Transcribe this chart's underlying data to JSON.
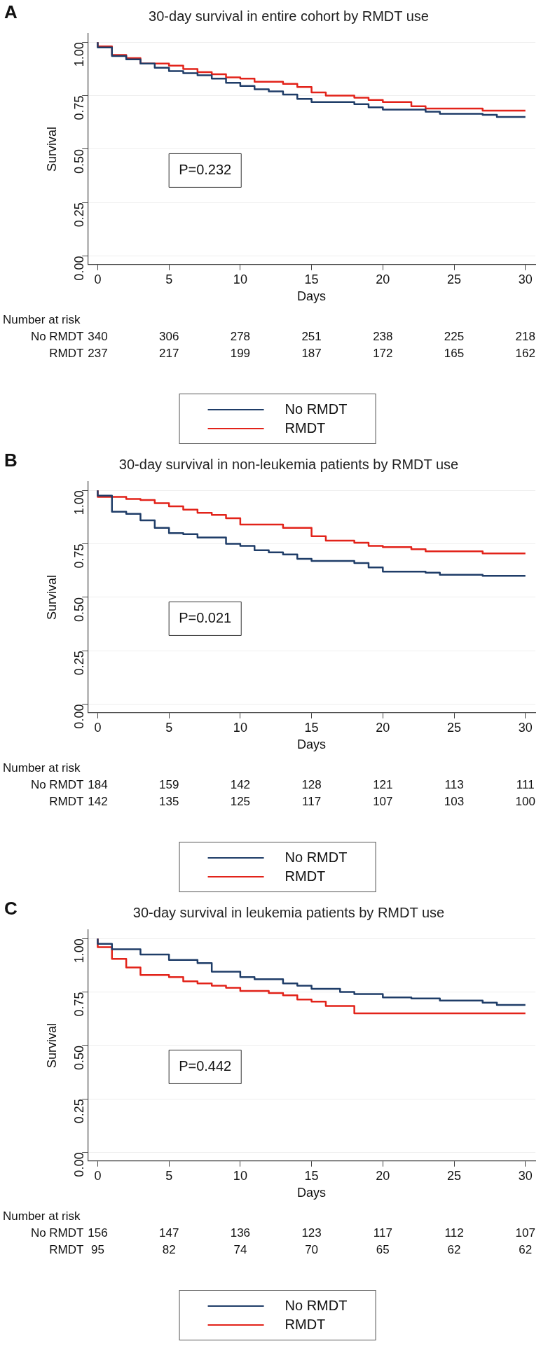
{
  "chart_data": [
    {
      "type": "step",
      "title": "30-day survival in entire cohort by RMDT use",
      "xlabel": "Days",
      "ylabel": "Survival",
      "xlim": [
        -0.7,
        30.7
      ],
      "xticks": [
        0,
        5,
        10,
        15,
        20,
        25,
        30
      ],
      "ylim": [
        -0.04,
        1.04
      ],
      "yticks": [
        {
          "value": 0,
          "label": "0.00"
        },
        {
          "value": 0.25,
          "label": "0.25"
        },
        {
          "value": 0.5,
          "label": "0.50"
        },
        {
          "value": 0.75,
          "label": "0.75"
        },
        {
          "value": 1,
          "label": "1.00"
        }
      ],
      "grid": "y",
      "legend": "bottom",
      "annotations": [
        "A",
        "P=0.232",
        "Number at risk",
        "No RMDT",
        "340",
        "306",
        "278",
        "251",
        "238",
        "225",
        "218",
        "RMDT",
        "237",
        "217",
        "199",
        "187",
        "172",
        "165",
        "162"
      ],
      "series": [
        {
          "name": "No RMDT",
          "color": "#1f3d68",
          "x": [
            0,
            1,
            2,
            3,
            4,
            5,
            6,
            7,
            8,
            9,
            10,
            11,
            12,
            13,
            14,
            15,
            18,
            19,
            20,
            23,
            24,
            27,
            28,
            30
          ],
          "values": [
            1.0,
            0.975,
            0.935,
            0.92,
            0.9,
            0.88,
            0.865,
            0.855,
            0.845,
            0.83,
            0.81,
            0.795,
            0.78,
            0.77,
            0.755,
            0.735,
            0.72,
            0.71,
            0.695,
            0.685,
            0.675,
            0.665,
            0.66,
            0.65
          ]
        },
        {
          "name": "RMDT",
          "color": "#e2231a",
          "x": [
            0,
            1,
            2,
            3,
            5,
            6,
            7,
            8,
            9,
            10,
            11,
            13,
            14,
            15,
            16,
            18,
            19,
            20,
            22,
            23,
            27,
            28,
            30
          ],
          "values": [
            1.0,
            0.98,
            0.94,
            0.925,
            0.9,
            0.89,
            0.875,
            0.86,
            0.85,
            0.835,
            0.83,
            0.815,
            0.805,
            0.79,
            0.765,
            0.75,
            0.74,
            0.73,
            0.72,
            0.7,
            0.69,
            0.68,
            0.68
          ]
        }
      ]
    },
    {
      "type": "step",
      "title": "30-day survival in non-leukemia patients by RMDT use",
      "xlabel": "Days",
      "ylabel": "Survival",
      "xlim": [
        -0.7,
        30.7
      ],
      "xticks": [
        0,
        5,
        10,
        15,
        20,
        25,
        30
      ],
      "ylim": [
        -0.04,
        1.04
      ],
      "yticks": [
        {
          "value": 0,
          "label": "0.00"
        },
        {
          "value": 0.25,
          "label": "0.25"
        },
        {
          "value": 0.5,
          "label": "0.50"
        },
        {
          "value": 0.75,
          "label": "0.75"
        },
        {
          "value": 1,
          "label": "1.00"
        }
      ],
      "grid": "y",
      "legend": "bottom",
      "annotations": [
        "B",
        "P=0.021",
        "Number at risk",
        "No RMDT",
        "184",
        "159",
        "142",
        "128",
        "121",
        "113",
        "111",
        "RMDT",
        "142",
        "135",
        "125",
        "117",
        "107",
        "103",
        "100"
      ],
      "series": [
        {
          "name": "No RMDT",
          "color": "#1f3d68",
          "x": [
            0,
            1,
            2,
            3,
            4,
            5,
            6,
            7,
            9,
            10,
            11,
            12,
            13,
            14,
            15,
            18,
            19,
            20,
            23,
            24,
            27,
            30
          ],
          "values": [
            1.0,
            0.975,
            0.9,
            0.89,
            0.86,
            0.825,
            0.8,
            0.795,
            0.78,
            0.75,
            0.74,
            0.72,
            0.71,
            0.7,
            0.68,
            0.67,
            0.66,
            0.64,
            0.62,
            0.615,
            0.605,
            0.6
          ]
        },
        {
          "name": "RMDT",
          "color": "#e2231a",
          "x": [
            0,
            2,
            3,
            4,
            5,
            6,
            7,
            8,
            9,
            10,
            13,
            15,
            16,
            18,
            19,
            20,
            22,
            23,
            27,
            28,
            30
          ],
          "values": [
            1.0,
            0.97,
            0.96,
            0.955,
            0.94,
            0.925,
            0.91,
            0.895,
            0.885,
            0.87,
            0.84,
            0.825,
            0.785,
            0.765,
            0.755,
            0.74,
            0.735,
            0.725,
            0.715,
            0.705,
            0.705
          ]
        }
      ]
    },
    {
      "type": "step",
      "title": "30-day survival in leukemia patients by RMDT use",
      "xlabel": "Days",
      "ylabel": "Survival",
      "xlim": [
        -0.7,
        30.7
      ],
      "xticks": [
        0,
        5,
        10,
        15,
        20,
        25,
        30
      ],
      "ylim": [
        -0.04,
        1.04
      ],
      "yticks": [
        {
          "value": 0,
          "label": "0.00"
        },
        {
          "value": 0.25,
          "label": "0.25"
        },
        {
          "value": 0.5,
          "label": "0.50"
        },
        {
          "value": 0.75,
          "label": "0.75"
        },
        {
          "value": 1,
          "label": "1.00"
        }
      ],
      "grid": "y",
      "legend": "bottom",
      "annotations": [
        "C",
        "P=0.442",
        "Number at risk",
        "No RMDT",
        "156",
        "147",
        "136",
        "123",
        "117",
        "112",
        "107",
        "RMDT",
        "95",
        "82",
        "74",
        "70",
        "65",
        "62",
        "62"
      ],
      "series": [
        {
          "name": "No RMDT",
          "color": "#1f3d68",
          "x": [
            0,
            1,
            3,
            5,
            7,
            8,
            10,
            11,
            13,
            14,
            15,
            17,
            18,
            20,
            22,
            24,
            27,
            28,
            29,
            30
          ],
          "values": [
            1.0,
            0.975,
            0.95,
            0.925,
            0.9,
            0.885,
            0.845,
            0.82,
            0.81,
            0.79,
            0.78,
            0.765,
            0.75,
            0.74,
            0.725,
            0.72,
            0.71,
            0.7,
            0.69,
            0.69
          ]
        },
        {
          "name": "RMDT",
          "color": "#e2231a",
          "x": [
            0,
            1,
            2,
            3,
            5,
            6,
            7,
            8,
            9,
            10,
            12,
            13,
            14,
            15,
            16,
            18,
            23,
            30
          ],
          "values": [
            1.0,
            0.96,
            0.905,
            0.865,
            0.83,
            0.82,
            0.8,
            0.79,
            0.78,
            0.77,
            0.755,
            0.745,
            0.735,
            0.715,
            0.705,
            0.685,
            0.65,
            0.65
          ]
        }
      ]
    }
  ]
}
